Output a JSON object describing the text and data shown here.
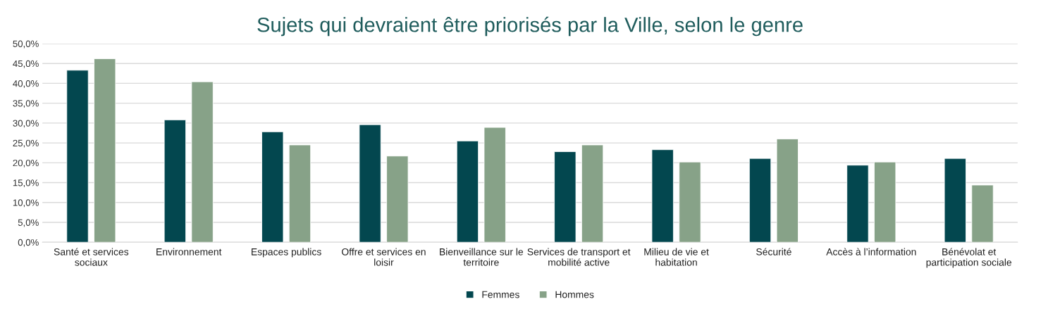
{
  "chart_data": {
    "type": "bar",
    "title": "Sujets qui devraient être priorisés par la Ville, selon le genre",
    "categories": [
      "Santé et services sociaux",
      "Environnement",
      "Espaces publics",
      "Offre et services en loisir",
      "Bienveillance sur le territoire",
      "Services de transport et mobilité active",
      "Milieu de vie et habitation",
      "Sécurité",
      "Accès à l’information",
      "Bénévolat et participation sociale"
    ],
    "series": [
      {
        "name": "Femmes",
        "color": "#03474f",
        "values": [
          43.3,
          30.8,
          27.8,
          29.6,
          25.5,
          22.8,
          23.3,
          21.1,
          19.4,
          21.1
        ]
      },
      {
        "name": "Hommes",
        "color": "#87a288",
        "values": [
          46.2,
          40.4,
          24.5,
          21.7,
          28.9,
          24.5,
          20.2,
          26.0,
          20.2,
          14.4
        ]
      }
    ],
    "ylim": [
      0,
      50
    ],
    "yticks": [
      {
        "value": 0,
        "label": "0,0%"
      },
      {
        "value": 5,
        "label": "5,0%"
      },
      {
        "value": 10,
        "label": "10,0%"
      },
      {
        "value": 15,
        "label": "15,0%"
      },
      {
        "value": 20,
        "label": "20,0%"
      },
      {
        "value": 25,
        "label": "25,0%"
      },
      {
        "value": 30,
        "label": "30,0%"
      },
      {
        "value": 35,
        "label": "35,0%"
      },
      {
        "value": 40,
        "label": "40,0%"
      },
      {
        "value": 45,
        "label": "45,0%"
      },
      {
        "value": 50,
        "label": "50,0%"
      }
    ],
    "grid": "y",
    "legend": "bottom"
  }
}
